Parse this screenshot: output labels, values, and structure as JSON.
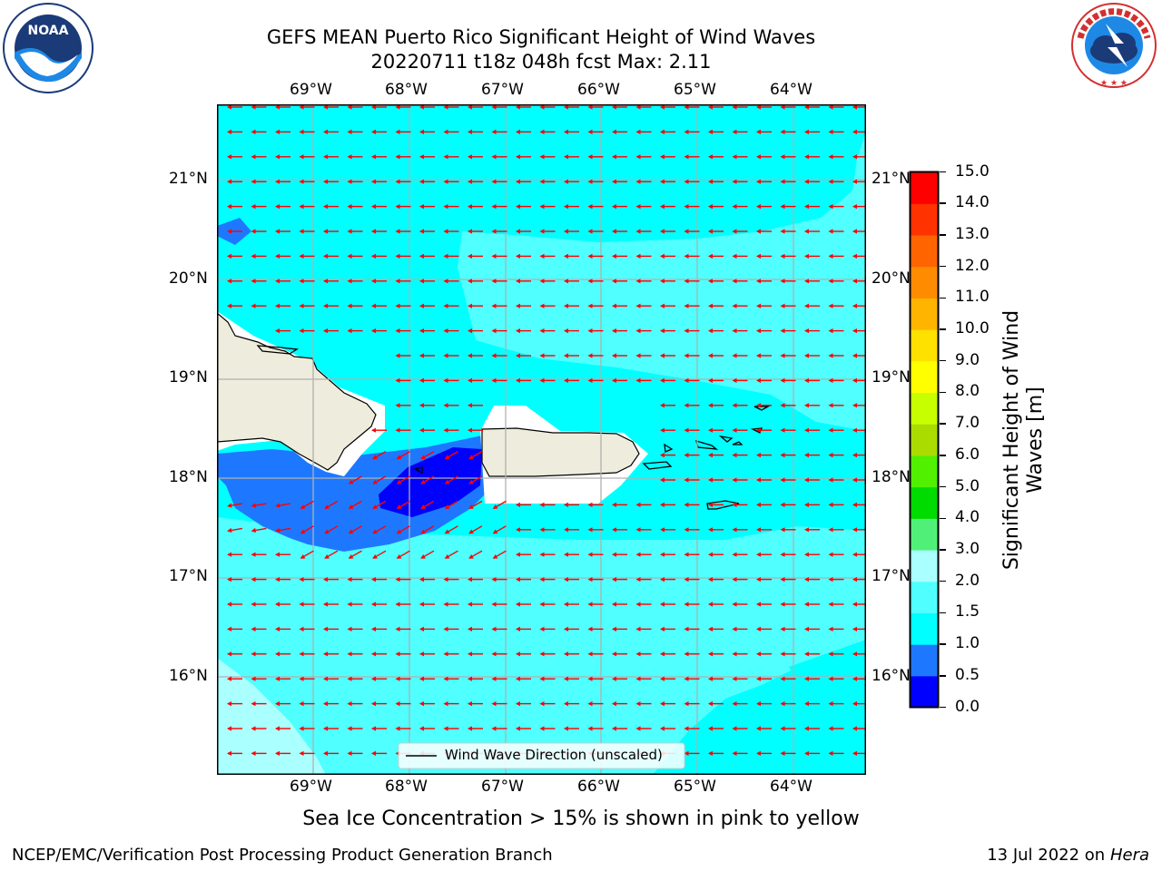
{
  "header": {
    "title_line1": "GEFS MEAN Puerto Rico Significant Height of Wind Waves",
    "title_line2": "20220711 t18z 048h fcst   Max: 2.11"
  },
  "logos": {
    "left_text": "NOAA",
    "left_ring_text": "NATIONAL OCEANIC AND ATMOSPHERIC ADMINISTRATION · U.S. DEPARTMENT OF COMMERCE",
    "right_ring_text": "NATIONAL WEATHER SERVICE"
  },
  "map": {
    "lon_labels": [
      "69°W",
      "68°W",
      "67°W",
      "66°W",
      "65°W",
      "64°W"
    ],
    "lat_labels": [
      "21°N",
      "20°N",
      "19°N",
      "18°N",
      "17°N",
      "16°N"
    ],
    "legend_label": "Wind Wave Direction (unscaled)",
    "arrow_color": "#ff0000",
    "arrow_direction": "westward"
  },
  "colorbar": {
    "label_line1": "Significant Height of Wind",
    "label_line2": "Waves [m]",
    "ticks": [
      "0.0",
      "0.5",
      "1.0",
      "1.5",
      "2.0",
      "3.0",
      "4.0",
      "5.0",
      "6.0",
      "7.0",
      "8.0",
      "9.0",
      "10.0",
      "11.0",
      "12.0",
      "13.0",
      "14.0",
      "15.0"
    ],
    "colors": [
      "#0000ff",
      "#1e78ff",
      "#00ffff",
      "#50ffff",
      "#aaffff",
      "#50f078",
      "#00dc00",
      "#50f000",
      "#aadc00",
      "#c8ff00",
      "#ffff00",
      "#ffe100",
      "#ffb400",
      "#ff8c00",
      "#ff6400",
      "#ff3200",
      "#ff0000"
    ]
  },
  "footer": {
    "note": "Sea Ice Concentration > 15% is shown in pink to yellow",
    "left": "NCEP/EMC/Verification Post Processing Product Generation Branch",
    "date": "13 Jul 2022 on ",
    "host": "Hera"
  }
}
